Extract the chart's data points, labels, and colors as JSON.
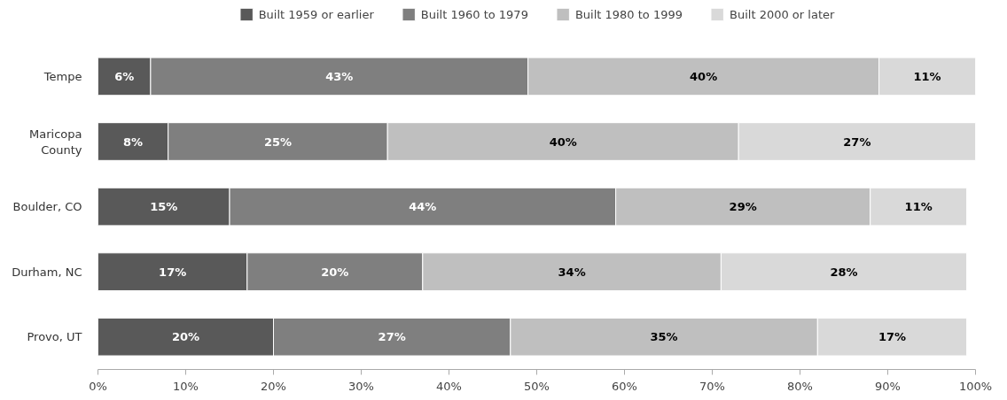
{
  "chart_data": {
    "type": "bar",
    "orientation": "horizontal",
    "stacked": true,
    "legend": "top",
    "grid": false,
    "categories": [
      "Tempe",
      "Maricopa County",
      "Boulder, CO",
      "Durham, NC",
      "Provo, UT"
    ],
    "series": [
      {
        "name": "Built 1959 or earlier",
        "color": "#595959",
        "values": [
          6,
          8,
          15,
          17,
          20
        ],
        "value_labels": [
          "6%",
          "8%",
          "15%",
          "17%",
          "20%"
        ]
      },
      {
        "name": "Built 1960 to 1979",
        "color": "#7f7f7f",
        "values": [
          43,
          25,
          44,
          20,
          27
        ],
        "value_labels": [
          "43%",
          "25%",
          "44%",
          "20%",
          "27%"
        ]
      },
      {
        "name": "Built 1980 to 1999",
        "color": "#bfbfbf",
        "values": [
          40,
          40,
          29,
          34,
          35
        ],
        "value_labels": [
          "40%",
          "40%",
          "29%",
          "34%",
          "35%"
        ]
      },
      {
        "name": "Built 2000 or later",
        "color": "#d9d9d9",
        "values": [
          11,
          27,
          11,
          28,
          17
        ],
        "value_labels": [
          "11%",
          "27%",
          "11%",
          "28%",
          "17%"
        ]
      }
    ],
    "xlim": [
      0,
      100
    ],
    "xticks": [
      {
        "value": 0,
        "label": "0%"
      },
      {
        "value": 10,
        "label": "10%"
      },
      {
        "value": 20,
        "label": "20%"
      },
      {
        "value": 30,
        "label": "30%"
      },
      {
        "value": 40,
        "label": "40%"
      },
      {
        "value": 50,
        "label": "50%"
      },
      {
        "value": 60,
        "label": "60%"
      },
      {
        "value": 70,
        "label": "70%"
      },
      {
        "value": 80,
        "label": "80%"
      },
      {
        "value": 90,
        "label": "90%"
      },
      {
        "value": 100,
        "label": "100%"
      }
    ]
  }
}
